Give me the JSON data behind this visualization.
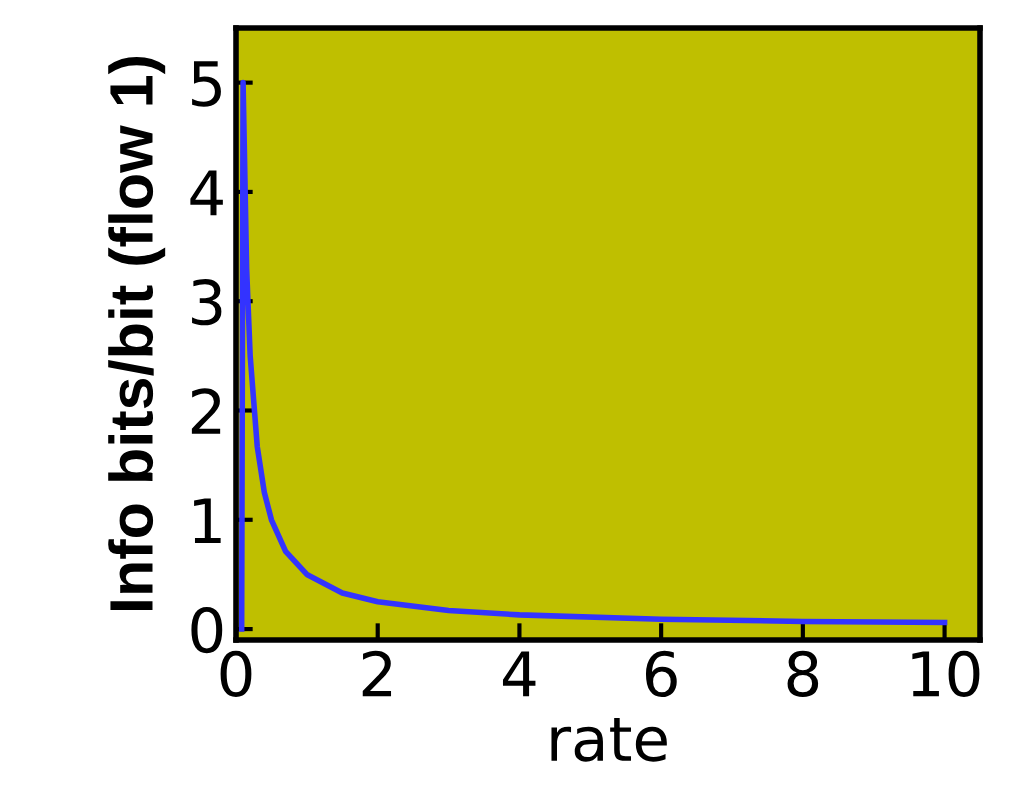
{
  "chart_data": {
    "type": "line",
    "xlabel": "rate",
    "ylabel": "Info bits/bit (flow 1)",
    "x": [
      0.08,
      0.1,
      0.15,
      0.2,
      0.3,
      0.4,
      0.5,
      0.7,
      1.0,
      1.5,
      2.0,
      3.0,
      4.0,
      6.0,
      8.0,
      10.0
    ],
    "series": [
      {
        "color": "#3333ff",
        "values": [
          0,
          5.0,
          3.3,
          2.5,
          1.67,
          1.25,
          1.0,
          0.71,
          0.5,
          0.33,
          0.25,
          0.17,
          0.13,
          0.09,
          0.07,
          0.06
        ]
      }
    ],
    "xlim": [
      0,
      10.5
    ],
    "ylim": [
      -0.1,
      5.5
    ],
    "xticks": [
      0,
      2,
      4,
      6,
      8,
      10
    ],
    "yticks": [
      0,
      1,
      2,
      3,
      4,
      5
    ],
    "grid": false,
    "line_style": "solid",
    "marker": "none"
  }
}
